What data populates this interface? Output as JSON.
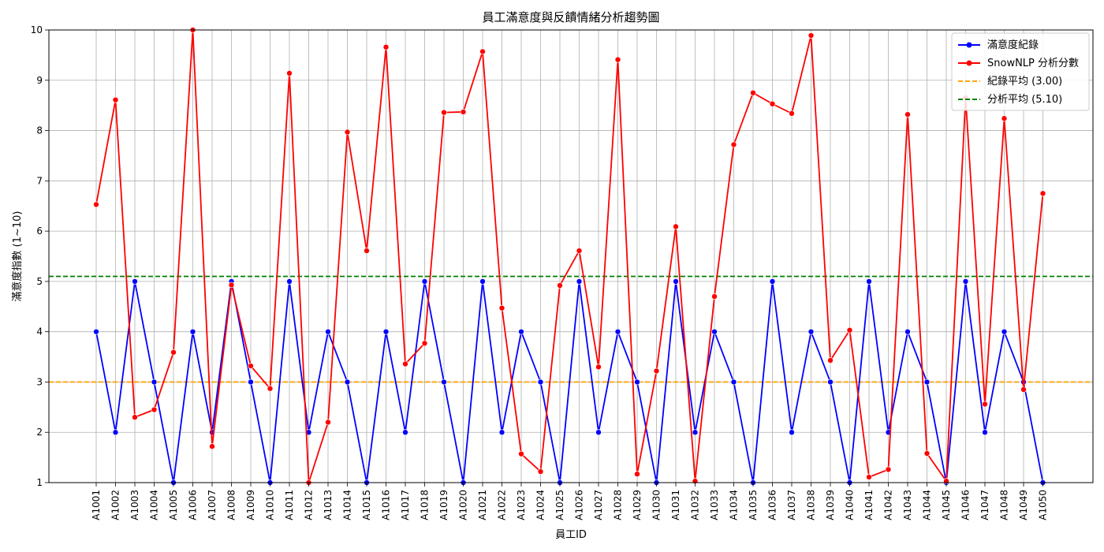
{
  "chart_data": {
    "type": "line",
    "title": "員工滿意度與反饋情緒分析趨勢圖",
    "xlabel": "員工ID",
    "ylabel": "滿意度指數 (1~10)",
    "ylim": [
      1,
      10
    ],
    "yticks": [
      "1",
      "2",
      "3",
      "4",
      "5",
      "6",
      "7",
      "8",
      "9",
      "10"
    ],
    "grid": true,
    "legend_position": "top-right",
    "categories": [
      "A1001",
      "A1002",
      "A1003",
      "A1004",
      "A1005",
      "A1006",
      "A1007",
      "A1008",
      "A1009",
      "A1010",
      "A1011",
      "A1012",
      "A1013",
      "A1014",
      "A1015",
      "A1016",
      "A1017",
      "A1018",
      "A1019",
      "A1020",
      "A1021",
      "A1022",
      "A1023",
      "A1024",
      "A1025",
      "A1026",
      "A1027",
      "A1028",
      "A1029",
      "A1030",
      "A1031",
      "A1032",
      "A1033",
      "A1034",
      "A1035",
      "A1036",
      "A1037",
      "A1038",
      "A1039",
      "A1040",
      "A1041",
      "A1042",
      "A1043",
      "A1044",
      "A1045",
      "A1046",
      "A1047",
      "A1048",
      "A1049",
      "A1050"
    ],
    "series": [
      {
        "name": "滿意度紀錄",
        "color": "#0000ff",
        "values": [
          4,
          2,
          5,
          3,
          1,
          4,
          2,
          5,
          3,
          1,
          5,
          2,
          4,
          3,
          1,
          4,
          2,
          5,
          3,
          1,
          5,
          2,
          4,
          3,
          1,
          5,
          2,
          4,
          3,
          1,
          5,
          2,
          4,
          3,
          1,
          5,
          2,
          4,
          3,
          1,
          5,
          2,
          4,
          3,
          1,
          5,
          2,
          4,
          3,
          1
        ]
      },
      {
        "name": "SnowNLP 分析分數",
        "color": "#ff0000",
        "values": [
          6.53,
          8.61,
          2.3,
          2.45,
          3.59,
          10.0,
          1.72,
          4.93,
          3.32,
          2.87,
          9.14,
          1.0,
          2.2,
          7.97,
          5.61,
          9.66,
          3.36,
          3.77,
          8.36,
          8.37,
          9.57,
          4.47,
          1.57,
          1.22,
          4.92,
          5.61,
          3.3,
          9.41,
          1.17,
          3.22,
          6.09,
          1.03,
          4.7,
          7.72,
          8.75,
          8.53,
          8.34,
          9.89,
          3.43,
          4.03,
          1.11,
          1.26,
          8.32,
          1.58,
          1.03,
          8.65,
          2.56,
          8.24,
          2.85,
          6.75
        ]
      }
    ],
    "reference_lines": [
      {
        "name": "紀錄平均 (3.00)",
        "value": 3.0,
        "color": "#ffa500"
      },
      {
        "name": "分析平均 (5.10)",
        "value": 5.1,
        "color": "#008000"
      }
    ]
  }
}
